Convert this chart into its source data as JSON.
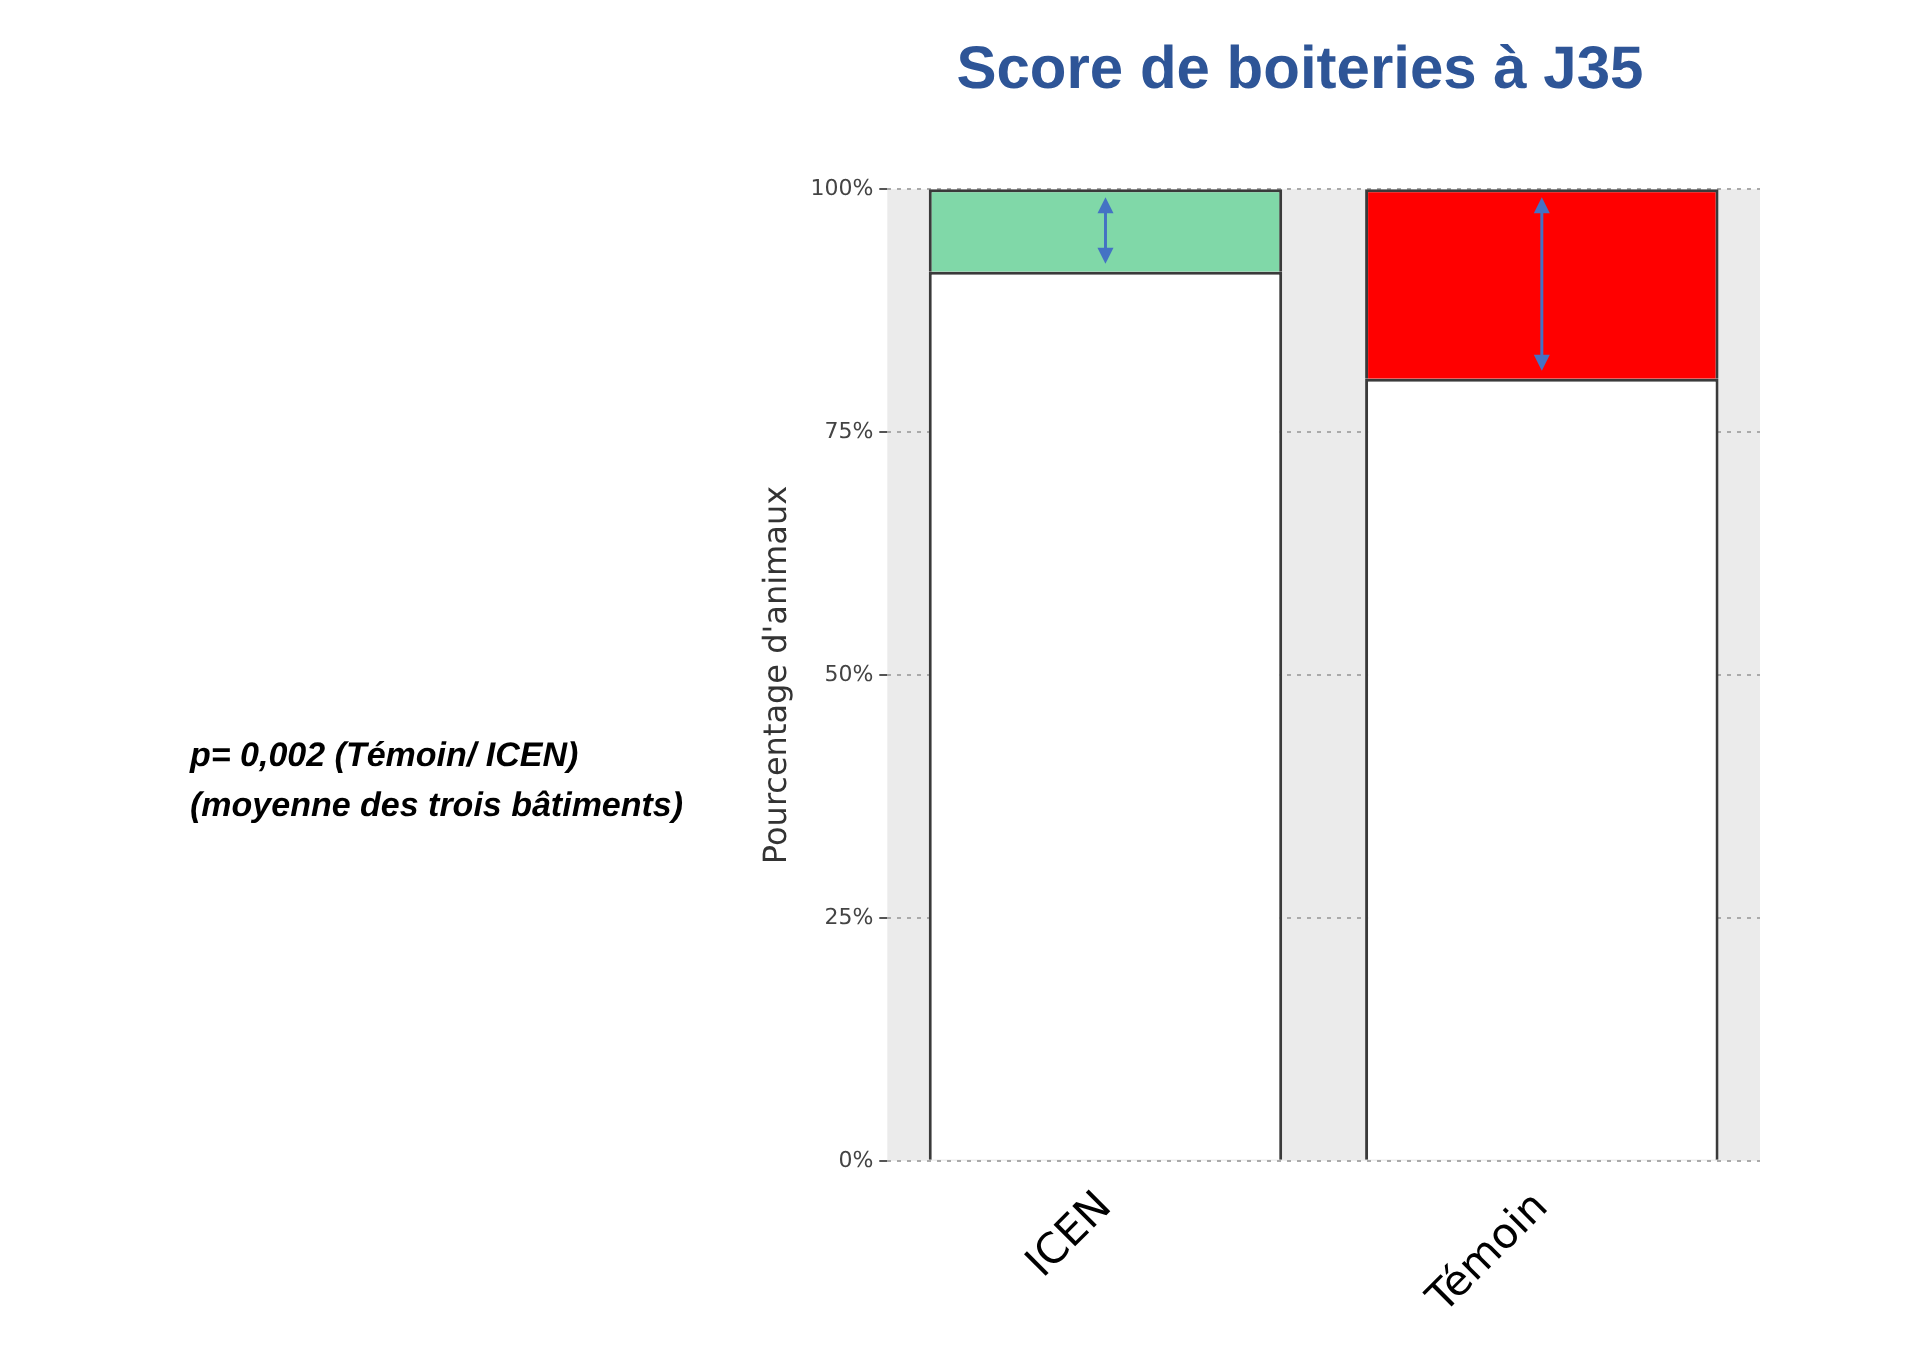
{
  "chart_data": {
    "type": "bar",
    "title": "Score de boiteries à J35",
    "ylabel": "Pourcentage d'animaux",
    "categories": [
      "ICEN",
      "Témoin"
    ],
    "stacked": true,
    "series": [
      {
        "color": "#ffffff",
        "values": [
          91.5,
          80.5
        ]
      },
      {
        "colors": [
          "#80d8a8",
          "#ff0000"
        ],
        "values": [
          8.5,
          19.5
        ]
      }
    ],
    "ylim": [
      0,
      100
    ],
    "yticks": [
      {
        "value": 0,
        "label": "0%"
      },
      {
        "value": 25,
        "label": "25%"
      },
      {
        "value": 50,
        "label": "50%"
      },
      {
        "value": 75,
        "label": "75%"
      },
      {
        "value": 100,
        "label": "100%"
      }
    ],
    "grid": "y",
    "legend": false,
    "annotations": [
      "p= 0,002 (Témoin/ ICEN)",
      "(moyenne des trois bâtiments)"
    ]
  }
}
